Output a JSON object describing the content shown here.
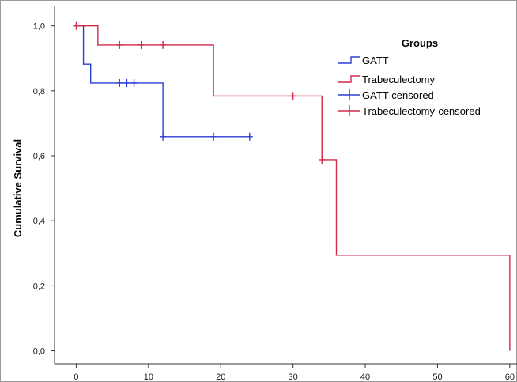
{
  "chart_data": {
    "type": "line",
    "step": true,
    "title": "",
    "xlabel": "",
    "ylabel": "Cumulative Survival",
    "xlim": [
      -3,
      61
    ],
    "ylim": [
      -0.04,
      1.06
    ],
    "x_ticks": [
      0,
      10,
      20,
      30,
      40,
      50,
      60
    ],
    "x_tick_labels": [
      "0",
      "10",
      "20",
      "30",
      "40",
      "50",
      "60"
    ],
    "y_ticks": [
      0.0,
      0.2,
      0.4,
      0.6,
      0.8,
      1.0
    ],
    "y_tick_labels": [
      "0,0",
      "0,2",
      "0,4",
      "0,6",
      "0,8",
      "1,0"
    ],
    "grid": false,
    "legend": {
      "title": "Groups",
      "placement": "top-right",
      "entries": [
        {
          "label": "GATT",
          "kind": "step",
          "color": "#2b3fd6"
        },
        {
          "label": "Trabeculectomy",
          "kind": "step",
          "color": "#d12a4a"
        },
        {
          "label": "GATT-censored",
          "kind": "cross",
          "color": "#2b3fd6"
        },
        {
          "label": "Trabeculectomy-censored",
          "kind": "cross",
          "color": "#d12a4a"
        }
      ]
    },
    "series": [
      {
        "name": "GATT",
        "color": "#2b3fd6",
        "steps": [
          [
            0,
            1.0
          ],
          [
            1,
            0.882
          ],
          [
            2,
            0.824
          ],
          [
            12,
            0.659
          ],
          [
            24,
            0.659
          ]
        ],
        "censored": [
          [
            6,
            0.824
          ],
          [
            7,
            0.824
          ],
          [
            8,
            0.824
          ],
          [
            12,
            0.659
          ],
          [
            19,
            0.659
          ],
          [
            24,
            0.659
          ]
        ]
      },
      {
        "name": "Trabeculectomy",
        "color": "#d12a4a",
        "steps": [
          [
            0,
            1.0
          ],
          [
            3,
            0.941
          ],
          [
            19,
            0.784
          ],
          [
            34,
            0.588
          ],
          [
            36,
            0.294
          ],
          [
            60,
            0.0
          ]
        ],
        "censored": [
          [
            0,
            1.0
          ],
          [
            6,
            0.941
          ],
          [
            9,
            0.941
          ],
          [
            12,
            0.941
          ],
          [
            30,
            0.784
          ],
          [
            34,
            0.588
          ]
        ]
      }
    ]
  }
}
